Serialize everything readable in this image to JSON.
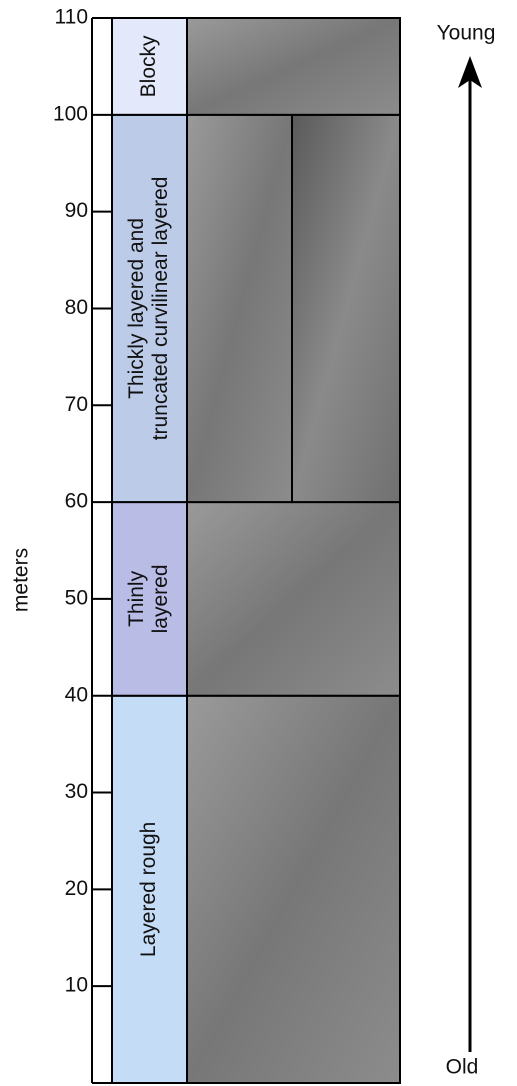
{
  "chart_data": {
    "type": "strat",
    "y_label": "meters",
    "ylim": [
      0,
      110
    ],
    "yticks": [
      10,
      20,
      30,
      40,
      50,
      60,
      70,
      80,
      90,
      100,
      110
    ],
    "units": [
      {
        "name": [
          "Layered rough"
        ],
        "bottom": 0,
        "top": 40,
        "color": "#c5dcf6"
      },
      {
        "name": [
          "Thinly",
          "layered"
        ],
        "bottom": 40,
        "top": 60,
        "color": "#b9bde6"
      },
      {
        "name": [
          "Thickly layered and",
          "truncated curvilinear layered"
        ],
        "bottom": 60,
        "top": 100,
        "color": "#bccbe8"
      },
      {
        "name": [
          "Blocky"
        ],
        "bottom": 100,
        "top": 110,
        "color": "#e3e8fb"
      }
    ],
    "arrow_top_label": "Young",
    "arrow_bottom_label": "Old"
  }
}
